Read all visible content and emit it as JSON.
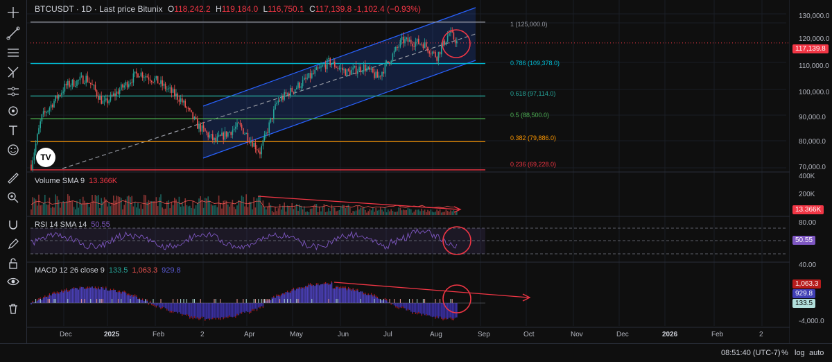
{
  "header": {
    "symbol": "BTCUSDT · 1D · Last price Bitunix",
    "o_label": "O",
    "o_value": "118,242.2",
    "h_label": "H",
    "h_value": "119,184.0",
    "l_label": "L",
    "l_value": "116,750.1",
    "c_label": "C",
    "c_value": "117,139.8 -1,102.4 (−0.93%)"
  },
  "volume_pane": {
    "label": "Volume SMA 9",
    "value": "13.366K"
  },
  "rsi_pane": {
    "label": "RSI 14 SMA 14",
    "value": "50.55"
  },
  "macd_pane": {
    "label": "MACD 12 26 close 9",
    "value1": "133.5",
    "value2": "1,063.3",
    "value3": "929.8"
  },
  "price_axis": [
    "130,000.0",
    "120,000.0",
    "110,000.0",
    "100,000.0",
    "90,000.0",
    "80,000.0",
    "70,000.0"
  ],
  "volume_axis": [
    "400K",
    "200K"
  ],
  "rsi_axis": [
    "80.00",
    "40.00"
  ],
  "macd_axis": [
    "-4,000.0"
  ],
  "badges": {
    "price": "117,139.8",
    "volume": "13.366K",
    "rsi": "50.55",
    "macd_1": "1,063.3",
    "macd_2": "929.8",
    "macd_3": "133.5"
  },
  "fib_levels": [
    {
      "label": "1 (125,000.0)",
      "color": "#9598a1",
      "price": 125000
    },
    {
      "label": "0.786 (109,378.0)",
      "color": "#00bcd4",
      "price": 109378
    },
    {
      "label": "0.618 (97,114.0)",
      "color": "#26a69a",
      "price": 97114
    },
    {
      "label": "0.5 (88,500.0)",
      "color": "#4caf50",
      "price": 88500
    },
    {
      "label": "0.382 (79,886.0)",
      "color": "#ff9800",
      "price": 79886
    },
    {
      "label": "0.236 (69,228.0)",
      "color": "#f23645",
      "price": 69228
    }
  ],
  "time_axis": [
    {
      "label": "Dec",
      "bold": false
    },
    {
      "label": "2025",
      "bold": true
    },
    {
      "label": "Feb",
      "bold": false
    },
    {
      "label": "2",
      "bold": false
    },
    {
      "label": "Apr",
      "bold": false
    },
    {
      "label": "May",
      "bold": false
    },
    {
      "label": "Jun",
      "bold": false
    },
    {
      "label": "Jul",
      "bold": false
    },
    {
      "label": "Aug",
      "bold": false
    },
    {
      "label": "Sep",
      "bold": false
    },
    {
      "label": "Oct",
      "bold": false
    },
    {
      "label": "Nov",
      "bold": false
    },
    {
      "label": "Dec",
      "bold": false
    },
    {
      "label": "2026",
      "bold": true
    },
    {
      "label": "Feb",
      "bold": false
    },
    {
      "label": "2",
      "bold": false
    }
  ],
  "bottom_bar": {
    "time": "08:51:40 (UTC-7)",
    "percent": "%",
    "log": "log",
    "auto": "auto"
  },
  "tools": [
    "crosshair-icon",
    "trend-line-icon",
    "horizontal-lines-icon",
    "pitchfork-icon",
    "gann-icon",
    "brush-icon",
    "text-icon",
    "emoji-icon",
    "ruler-icon",
    "zoom-icon",
    "magnet-icon",
    "pencil-lock-icon",
    "lock-icon",
    "eye-icon",
    "trash-icon"
  ],
  "logo_text": "TV",
  "colors": {
    "up": "#26a69a",
    "down": "#ef5350",
    "channel": "#2962ff",
    "rsi": "#7e57c2",
    "accent": "#f23645"
  }
}
